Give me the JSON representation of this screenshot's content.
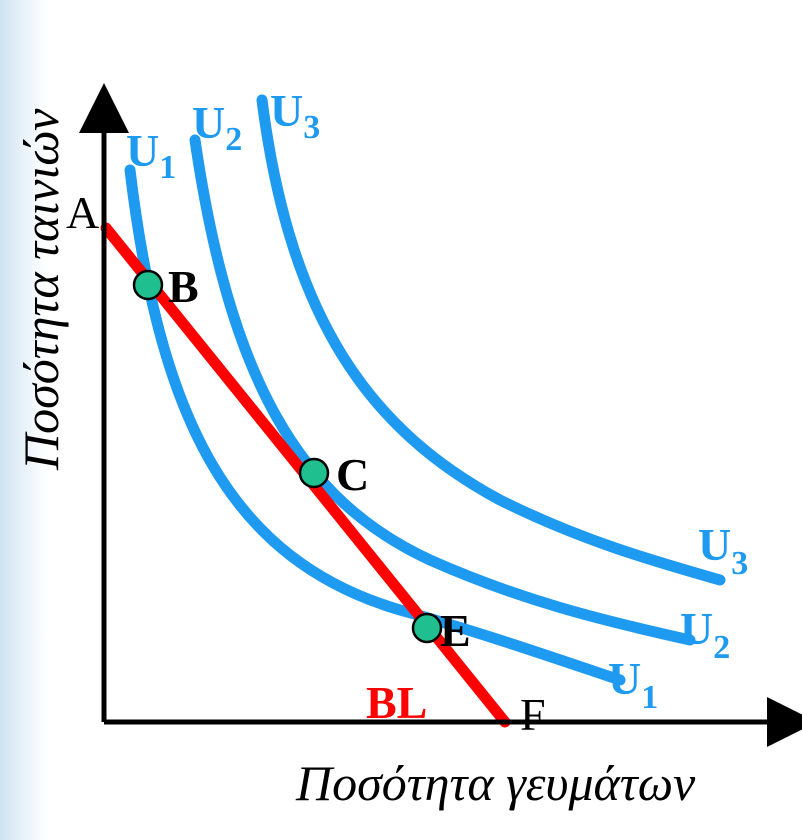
{
  "axes": {
    "x_title": "Ποσότητα γευμάτων",
    "y_title": "Ποσότητα ταινιών"
  },
  "colors": {
    "curve": "#1e9af0",
    "budget_line": "#ff0000",
    "point_fill": "#1fbf8f",
    "axis": "#000000"
  },
  "budget_line": {
    "label": "BL",
    "start_label": "A",
    "end_label": "F"
  },
  "curves": [
    {
      "name": "U",
      "sub": "1"
    },
    {
      "name": "U",
      "sub": "2"
    },
    {
      "name": "U",
      "sub": "3"
    }
  ],
  "points": [
    {
      "label": "B"
    },
    {
      "label": "C"
    },
    {
      "label": "E"
    }
  ]
}
